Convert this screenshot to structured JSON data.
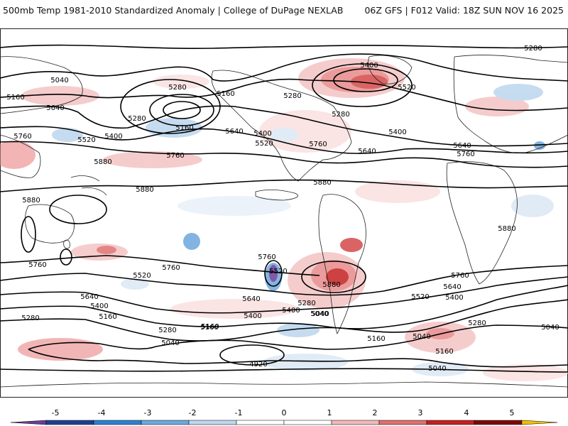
{
  "header": {
    "left_title": "500mb Temp 1981-2010 Standardized Anomaly | College of DuPage NEXLAB",
    "right_title": "06Z GFS | F012 Valid: 18Z SUN NOV 16 2025"
  },
  "colorbar": {
    "ticks": [
      "-5",
      "-4",
      "-3",
      "-2",
      "-1",
      "0",
      "1",
      "2",
      "3",
      "4",
      "5"
    ],
    "colors": [
      "#6a3d9a",
      "#1f3f8f",
      "#2f7fcf",
      "#6ea8dc",
      "#bcd6ee",
      "#ffffff",
      "#ffffff",
      "#f2b8b8",
      "#e07070",
      "#c42020",
      "#7a0a0a",
      "#f5c000"
    ]
  },
  "contour_labels": [
    "5040",
    "5160",
    "5640",
    "5760",
    "5280",
    "5160",
    "5280",
    "5400",
    "5520",
    "5160",
    "5640",
    "5760",
    "5880",
    "5880",
    "5880",
    "5880",
    "5280",
    "5400",
    "5400",
    "5520",
    "5280",
    "5760",
    "5640",
    "5520",
    "5400",
    "5640",
    "5760",
    "5280",
    "5760",
    "5520",
    "5760",
    "5640",
    "5400",
    "5280",
    "5160",
    "5040",
    "5640",
    "5400",
    "5280",
    "5160",
    "5040",
    "4920",
    "5880",
    "5400",
    "5520",
    "5640",
    "5760",
    "5040",
    "5160",
    "5040",
    "5160",
    "5280",
    "5040",
    "5880",
    "5760",
    "5520",
    "5400",
    "5280",
    "5040",
    "5160"
  ]
}
